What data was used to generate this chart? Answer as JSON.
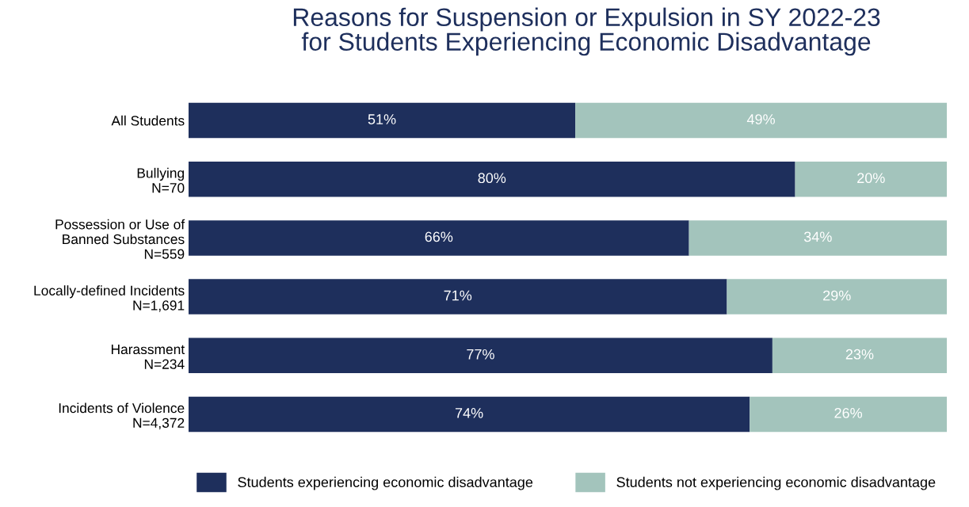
{
  "chart_data": {
    "type": "bar",
    "orientation": "horizontal",
    "stacked": true,
    "title": "Reasons for Suspension or Expulsion in SY 2022-23\nfor Students Experiencing Economic Disadvantage",
    "categories": [
      "All Students",
      "Bullying\nN=70",
      "Possession or Use of\nBanned Substances\nN=559",
      "Locally-defined Incidents\nN=1,691",
      "Harassment\nN=234",
      "Incidents of Violence\nN=4,372"
    ],
    "series": [
      {
        "name": "Students experiencing economic disadvantage",
        "color": "#1e2f5c",
        "values": [
          51,
          80,
          66,
          71,
          77,
          74
        ],
        "value_labels": [
          "51%",
          "80%",
          "66%",
          "71%",
          "77%",
          "74%"
        ]
      },
      {
        "name": "Students not experiencing economic disadvantage",
        "color": "#a3c4bc",
        "values": [
          49,
          20,
          34,
          29,
          23,
          26
        ],
        "value_labels": [
          "49%",
          "20%",
          "34%",
          "29%",
          "23%",
          "26%"
        ]
      }
    ],
    "xlim": [
      0,
      100
    ],
    "tick_labels": "y",
    "grid": false,
    "legend": "bottom"
  }
}
